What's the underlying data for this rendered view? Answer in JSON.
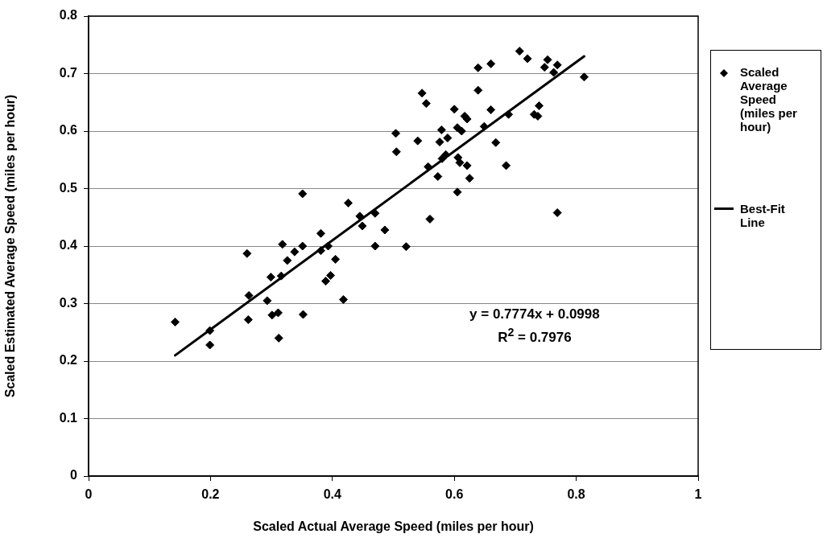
{
  "chart_data": {
    "type": "scatter",
    "xlabel": "Scaled Actual Average Speed (miles per hour)",
    "ylabel": "Scaled Estimated Average Speed (miles per hour)",
    "xlim": [
      0,
      1
    ],
    "xticks": [
      0,
      0.2,
      0.4,
      0.6,
      0.8,
      1
    ],
    "ylim": [
      0,
      0.8
    ],
    "yticks": [
      0,
      0.1,
      0.2,
      0.3,
      0.4,
      0.5,
      0.6,
      0.7,
      0.8
    ],
    "grid": "y",
    "legend": "right",
    "annotations": [
      "y = 0.7774x + 0.0998",
      "R$^{2}$ = 0.7976"
    ],
    "series": [
      {
        "name": "Scaled Average Speed (miles per hour)",
        "marker": "diamond",
        "color": "#000000",
        "x": [
          0.142,
          0.199,
          0.199,
          0.263,
          0.262,
          0.299,
          0.293,
          0.301,
          0.311,
          0.312,
          0.316,
          0.326,
          0.352,
          0.389,
          0.397,
          0.405,
          0.418,
          0.26,
          0.318,
          0.338,
          0.351,
          0.351,
          0.381,
          0.381,
          0.393,
          0.426,
          0.445,
          0.449,
          0.47,
          0.486,
          0.47,
          0.504,
          0.505,
          0.521,
          0.547,
          0.554,
          0.54,
          0.56,
          0.557,
          0.573,
          0.576,
          0.579,
          0.589,
          0.58,
          0.586,
          0.6,
          0.605,
          0.612,
          0.606,
          0.609,
          0.605,
          0.621,
          0.625,
          0.617,
          0.621,
          0.639,
          0.639,
          0.66,
          0.66,
          0.649,
          0.668,
          0.689,
          0.685,
          0.707,
          0.72,
          0.731,
          0.737,
          0.739,
          0.753,
          0.748,
          0.769,
          0.763,
          0.769,
          0.813
        ],
        "values": [
          0.268,
          0.253,
          0.228,
          0.314,
          0.272,
          0.346,
          0.305,
          0.28,
          0.284,
          0.24,
          0.348,
          0.375,
          0.281,
          0.339,
          0.349,
          0.377,
          0.307,
          0.387,
          0.403,
          0.39,
          0.4,
          0.491,
          0.422,
          0.392,
          0.4,
          0.475,
          0.452,
          0.435,
          0.457,
          0.428,
          0.4,
          0.596,
          0.564,
          0.399,
          0.666,
          0.648,
          0.583,
          0.447,
          0.538,
          0.521,
          0.581,
          0.602,
          0.588,
          0.552,
          0.559,
          0.638,
          0.606,
          0.6,
          0.554,
          0.545,
          0.494,
          0.54,
          0.518,
          0.626,
          0.621,
          0.71,
          0.671,
          0.717,
          0.637,
          0.608,
          0.58,
          0.629,
          0.54,
          0.739,
          0.726,
          0.629,
          0.626,
          0.644,
          0.724,
          0.711,
          0.715,
          0.702,
          0.458,
          0.694
        ]
      },
      {
        "name": "Best-Fit Line",
        "type": "line",
        "color": "#000000",
        "x": [
          0.142,
          0.813
        ],
        "values": [
          0.21,
          0.73
        ]
      }
    ]
  }
}
